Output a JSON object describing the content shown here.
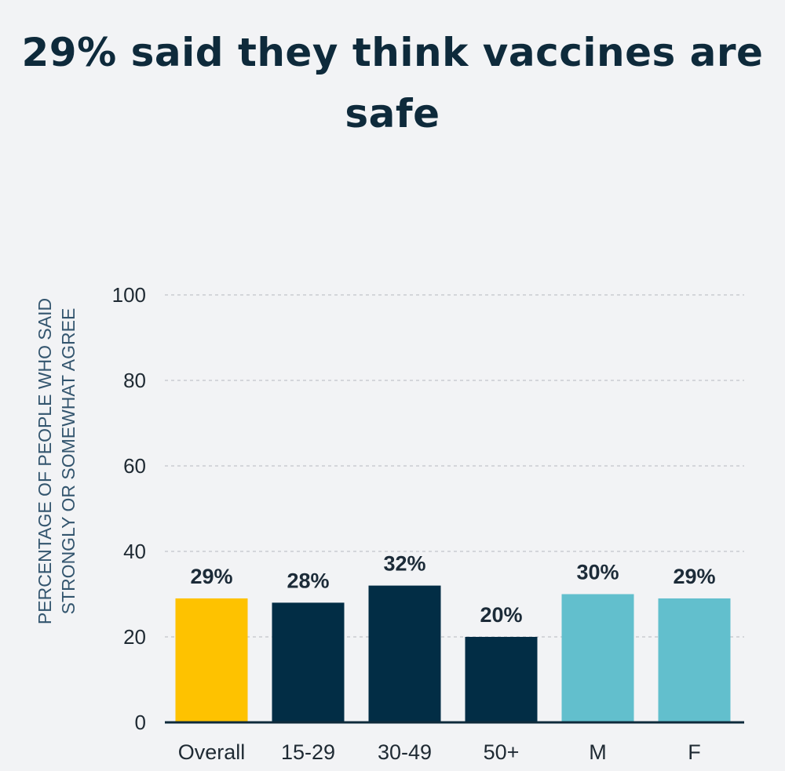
{
  "chart_data": {
    "type": "bar",
    "title": "29% said they think vaccines are safe",
    "ylabel_lines": [
      "PERCENTAGE OF PEOPLE WHO SAID",
      "STRONGLY OR SOMEWHAT AGREE"
    ],
    "xlabel": "",
    "ylim": [
      0,
      100
    ],
    "yticks": [
      0,
      20,
      40,
      60,
      80,
      100
    ],
    "grid": true,
    "categories": [
      "Overall",
      "15-29",
      "30-49",
      "50+",
      "M",
      "F"
    ],
    "values": [
      29,
      28,
      32,
      20,
      30,
      29
    ],
    "data_labels": [
      "29%",
      "28%",
      "32%",
      "20%",
      "30%",
      "29%"
    ],
    "colors": [
      "#fec200",
      "#022d45",
      "#022d45",
      "#022d45",
      "#62bfcd",
      "#62bfcd"
    ],
    "axis_color": "#0e2a3b",
    "gridline_color": "#c9ccd1"
  }
}
